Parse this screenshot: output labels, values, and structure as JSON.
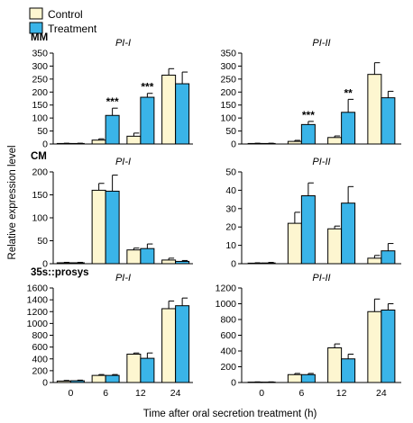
{
  "legend": {
    "control_label": "Control",
    "treatment_label": "Treatment",
    "control_color": "#fdf6d0",
    "treatment_color": "#3ab4e8"
  },
  "xlabel": "Time after oral secretion treatment (h)",
  "ylabel": "Relative expression level",
  "chart_data": [
    {
      "type": "bar",
      "row_label": "MM",
      "title": "PI-I",
      "categories": [
        "0",
        "6",
        "12",
        "24"
      ],
      "ylim": [
        0,
        350
      ],
      "yticks": [
        0,
        50,
        100,
        150,
        200,
        250,
        300,
        350
      ],
      "series": [
        {
          "name": "Control",
          "values": [
            2,
            15,
            30,
            265
          ],
          "errors": [
            1,
            5,
            12,
            25
          ]
        },
        {
          "name": "Treatment",
          "values": [
            2,
            110,
            180,
            232
          ],
          "errors": [
            1,
            28,
            15,
            45
          ]
        }
      ],
      "annotations": [
        "",
        "***",
        "***",
        ""
      ]
    },
    {
      "type": "bar",
      "row_label": "",
      "title": "PI-II",
      "categories": [
        "0",
        "6",
        "12",
        "24"
      ],
      "ylim": [
        0,
        350
      ],
      "yticks": [
        0,
        50,
        100,
        150,
        200,
        250,
        300,
        350
      ],
      "series": [
        {
          "name": "Control",
          "values": [
            2,
            10,
            25,
            268
          ],
          "errors": [
            1,
            4,
            6,
            45
          ]
        },
        {
          "name": "Treatment",
          "values": [
            2,
            75,
            122,
            178
          ],
          "errors": [
            1,
            12,
            50,
            25
          ]
        }
      ],
      "annotations": [
        "",
        "***",
        "**",
        ""
      ]
    },
    {
      "type": "bar",
      "row_label": "CM",
      "title": "PI-I",
      "categories": [
        "0",
        "6",
        "12",
        "24"
      ],
      "ylim": [
        0,
        200
      ],
      "yticks": [
        0,
        50,
        100,
        150,
        200
      ],
      "series": [
        {
          "name": "Control",
          "values": [
            2,
            160,
            30,
            8
          ],
          "errors": [
            1,
            15,
            4,
            4
          ]
        },
        {
          "name": "Treatment",
          "values": [
            2,
            158,
            33,
            5
          ],
          "errors": [
            1,
            35,
            10,
            2
          ]
        }
      ],
      "annotations": [
        "",
        "",
        "",
        ""
      ]
    },
    {
      "type": "bar",
      "row_label": "",
      "title": "PI-II",
      "categories": [
        "0",
        "6",
        "12",
        "24"
      ],
      "ylim": [
        0,
        50
      ],
      "yticks": [
        0,
        10,
        20,
        30,
        40,
        50
      ],
      "series": [
        {
          "name": "Control",
          "values": [
            0.3,
            22,
            19,
            3
          ],
          "errors": [
            0.2,
            6,
            1.5,
            1.5
          ]
        },
        {
          "name": "Treatment",
          "values": [
            0.4,
            37,
            33,
            7
          ],
          "errors": [
            0.3,
            7,
            9,
            4
          ]
        }
      ],
      "annotations": [
        "",
        "",
        "",
        ""
      ]
    },
    {
      "type": "bar",
      "row_label": "35s::prosys",
      "title": "PI-I",
      "categories": [
        "0",
        "6",
        "12",
        "24"
      ],
      "ylim": [
        0,
        1600
      ],
      "yticks": [
        0,
        200,
        400,
        600,
        800,
        1000,
        1200,
        1400,
        1600
      ],
      "series": [
        {
          "name": "Control",
          "values": [
            25,
            120,
            480,
            1250
          ],
          "errors": [
            10,
            15,
            20,
            130
          ]
        },
        {
          "name": "Treatment",
          "values": [
            30,
            120,
            410,
            1300
          ],
          "errors": [
            10,
            15,
            90,
            130
          ]
        }
      ],
      "annotations": [
        "",
        "",
        "",
        ""
      ]
    },
    {
      "type": "bar",
      "row_label": "",
      "title": "PI-II",
      "categories": [
        "0",
        "6",
        "12",
        "24"
      ],
      "ylim": [
        0,
        1200
      ],
      "yticks": [
        0,
        200,
        400,
        600,
        800,
        1000,
        1200
      ],
      "series": [
        {
          "name": "Control",
          "values": [
            5,
            100,
            440,
            900
          ],
          "errors": [
            3,
            15,
            50,
            160
          ]
        },
        {
          "name": "Treatment",
          "values": [
            5,
            100,
            300,
            920
          ],
          "errors": [
            3,
            15,
            60,
            80
          ]
        }
      ],
      "annotations": [
        "",
        "",
        "",
        ""
      ]
    }
  ]
}
